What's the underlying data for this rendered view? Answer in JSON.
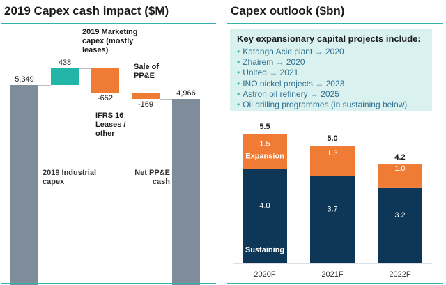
{
  "left_panel": {
    "title": "2019 Capex cash impact ($M)"
  },
  "right_panel": {
    "title": "Capex outlook ($bn)",
    "box": {
      "heading": "Key expansionary capital projects include:",
      "items": [
        "Katanga Acid plant → 2020",
        "Zhairem → 2020",
        "United → 2021",
        "INO nickel projects → 2023",
        "Astron oil refinery → 2025",
        "Oil drilling programmes (in sustaining below)"
      ]
    }
  },
  "colors": {
    "accent": "#34b3ad",
    "grey_bar": "#7f8c99",
    "teal_bar": "#23b5a7",
    "orange": "#ef7b34",
    "navy": "#0d3657",
    "box_bg": "#d9f1ef"
  },
  "chart_data": [
    {
      "type": "bar",
      "subtype": "waterfall",
      "title": "2019 Capex cash impact ($M)",
      "steps": [
        {
          "label": "2019 Industrial capex",
          "value": 5349,
          "value_label": "5,349",
          "kind": "total"
        },
        {
          "label": "2019 Marketing capex (mostly leases)",
          "value": 438,
          "value_label": "438",
          "kind": "increase"
        },
        {
          "label": "IFRS 16 Leases / other",
          "value": -652,
          "value_label": "-652",
          "kind": "decrease"
        },
        {
          "label": "Sale of PP&E",
          "value": -169,
          "value_label": "-169",
          "kind": "decrease"
        },
        {
          "label": "Net PP&E cash",
          "value": 4966,
          "value_label": "4,966",
          "kind": "total"
        }
      ],
      "ylim": [
        0,
        6400
      ]
    },
    {
      "type": "bar",
      "subtype": "stacked",
      "title": "Capex outlook ($bn)",
      "categories": [
        "2020F",
        "2021F",
        "2022F"
      ],
      "series": [
        {
          "name": "Sustaining",
          "values": [
            4.0,
            3.7,
            3.2
          ],
          "labels": [
            "4.0",
            "3.7",
            "3.2"
          ]
        },
        {
          "name": "Expansion",
          "values": [
            1.5,
            1.3,
            1.0
          ],
          "labels": [
            "1.5",
            "1.3",
            "1.0"
          ]
        }
      ],
      "totals": [
        "5.5",
        "5.0",
        "4.2"
      ],
      "ylim": [
        0,
        5.5
      ]
    }
  ]
}
